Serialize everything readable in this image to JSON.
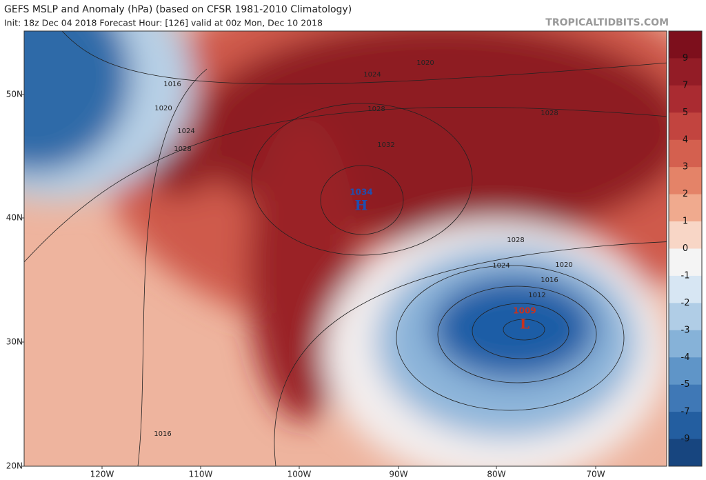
{
  "header": {
    "title": "GEFS MSLP and Anomaly (hPa) (based on CFSR 1981-2010 Climatology)",
    "subtitle": "Init: 18z Dec 04 2018   Forecast Hour: [126]   valid at 00z Mon, Dec 10 2018",
    "credit": "TROPICALTIDBITS.COM"
  },
  "colorbar": {
    "ticks": [
      9,
      7,
      5,
      4,
      3,
      2,
      1,
      0,
      -1,
      -2,
      -3,
      -4,
      -5,
      -7,
      -9
    ]
  },
  "axes": {
    "lat_labels": [
      "50N",
      "40N",
      "30N",
      "20N"
    ],
    "lon_labels": [
      "120W",
      "110W",
      "100W",
      "90W",
      "80W",
      "70W"
    ]
  },
  "isobar_labels": [
    "1016",
    "1020",
    "1024",
    "1028",
    "1024",
    "1020",
    "1028",
    "1032",
    "1028",
    "1028",
    "1024",
    "1020",
    "1016",
    "1012",
    "1016"
  ],
  "centers": [
    {
      "pressure": "1034",
      "symbol": "H"
    },
    {
      "pressure": "1009",
      "symbol": "L"
    }
  ]
}
